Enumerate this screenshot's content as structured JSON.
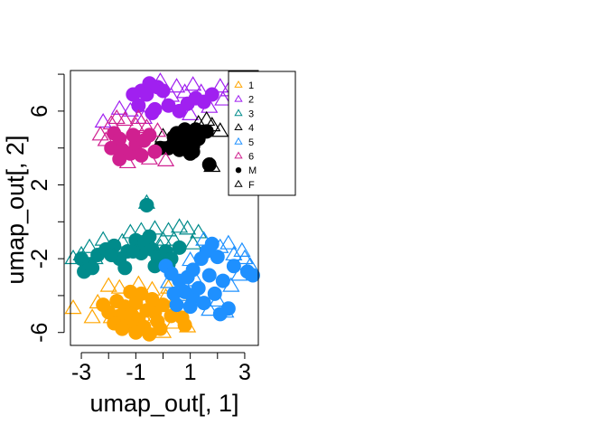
{
  "chart_data": {
    "type": "scatter",
    "title": "",
    "xlabel": "umap_out[, 1]",
    "ylabel": "umap_out[, 2]",
    "xlim": [
      -3.4,
      3.5
    ],
    "ylim": [
      -6.7,
      8.2
    ],
    "xticks": [
      -3,
      -1,
      1,
      3
    ],
    "xtick_labels": [
      "-3",
      "-1",
      "1",
      "3"
    ],
    "xminor": [
      -2,
      0,
      2
    ],
    "yticks": [
      -6,
      -2,
      2,
      6
    ],
    "ytick_labels": [
      "-6",
      "-2",
      "2",
      "6"
    ],
    "yminor": [
      -4,
      0,
      4,
      8
    ],
    "grid": false,
    "legend": {
      "placement": "top-right",
      "entries": [
        {
          "label": "1",
          "symbol": "triangle",
          "color": "#FFA500"
        },
        {
          "label": "2",
          "symbol": "triangle",
          "color": "#A020F0"
        },
        {
          "label": "3",
          "symbol": "triangle",
          "color": "#008B8B"
        },
        {
          "label": "4",
          "symbol": "triangle",
          "color": "#000000"
        },
        {
          "label": "5",
          "symbol": "triangle",
          "color": "#1E90FF"
        },
        {
          "label": "6",
          "symbol": "triangle",
          "color": "#D02090"
        },
        {
          "label": "M",
          "symbol": "circle",
          "color": "#000000"
        },
        {
          "label": "F",
          "symbol": "triangle",
          "color": "#000000"
        }
      ]
    },
    "series": [
      {
        "name": "1",
        "color": "#FFA500",
        "M": [
          [
            -1.7,
            -4.3
          ],
          [
            -1.4,
            -4.6
          ],
          [
            -1.0,
            -4.4
          ],
          [
            -0.6,
            -4.8
          ],
          [
            -1.2,
            -5.0
          ],
          [
            -1.6,
            -5.1
          ],
          [
            -0.9,
            -5.3
          ],
          [
            -0.3,
            -4.9
          ],
          [
            -1.8,
            -5.5
          ],
          [
            -1.3,
            -5.6
          ],
          [
            -0.7,
            -5.7
          ],
          [
            -0.2,
            -5.4
          ],
          [
            -1.0,
            -6.0
          ],
          [
            -0.5,
            -6.1
          ],
          [
            -1.5,
            -5.8
          ],
          [
            -0.8,
            -3.9
          ],
          [
            -1.2,
            -3.8
          ],
          [
            -0.4,
            -4.2
          ],
          [
            0.0,
            -4.5
          ],
          [
            0.3,
            -5.1
          ],
          [
            0.7,
            -5.2
          ],
          [
            0.8,
            -5.6
          ],
          [
            -2.0,
            -4.9
          ],
          [
            -2.2,
            -4.5
          ],
          [
            -0.1,
            -5.8
          ]
        ],
        "F": [
          [
            -3.3,
            -4.7
          ],
          [
            -2.4,
            -4.4
          ],
          [
            -2.0,
            -3.5
          ],
          [
            -1.6,
            -3.6
          ],
          [
            -0.9,
            -3.4
          ],
          [
            -0.4,
            -3.7
          ],
          [
            0.2,
            -3.6
          ],
          [
            0.1,
            -4.1
          ],
          [
            0.6,
            -4.0
          ],
          [
            -0.3,
            -5.2
          ],
          [
            0.4,
            -5.5
          ],
          [
            0.9,
            -5.7
          ],
          [
            -2.6,
            -5.2
          ],
          [
            -1.1,
            -4.9
          ],
          [
            0.0,
            -6.0
          ],
          [
            -1.9,
            -5.2
          ],
          [
            0.3,
            -4.6
          ],
          [
            -0.6,
            -5.5
          ]
        ]
      },
      {
        "name": "2",
        "color": "#A020F0",
        "M": [
          [
            -1.1,
            6.9
          ],
          [
            -0.8,
            7.1
          ],
          [
            -0.5,
            7.5
          ],
          [
            -0.2,
            7.3
          ],
          [
            0.0,
            7.1
          ],
          [
            -0.6,
            6.9
          ],
          [
            -0.9,
            6.3
          ],
          [
            -0.3,
            6.1
          ],
          [
            0.2,
            6.3
          ],
          [
            0.6,
            6.0
          ],
          [
            0.9,
            6.4
          ],
          [
            1.2,
            6.7
          ],
          [
            1.5,
            6.5
          ],
          [
            1.8,
            6.9
          ],
          [
            -0.4,
            5.9
          ]
        ],
        "F": [
          [
            -1.6,
            6.1
          ],
          [
            -1.2,
            6.0
          ],
          [
            -0.1,
            7.6
          ],
          [
            0.5,
            7.3
          ],
          [
            0.8,
            7.0
          ],
          [
            1.1,
            7.4
          ],
          [
            1.4,
            7.0
          ],
          [
            1.7,
            6.2
          ],
          [
            2.1,
            7.3
          ],
          [
            2.4,
            7.1
          ],
          [
            0.3,
            6.8
          ],
          [
            1.0,
            5.8
          ],
          [
            -2.2,
            5.4
          ],
          [
            -0.7,
            5.6
          ],
          [
            2.2,
            6.6
          ]
        ]
      },
      {
        "name": "3",
        "color": "#008B8B",
        "M": [
          [
            -3.0,
            -2.0
          ],
          [
            -2.9,
            -2.7
          ],
          [
            -2.7,
            -2.3
          ],
          [
            -2.4,
            -1.8
          ],
          [
            -2.1,
            -1.5
          ],
          [
            -1.8,
            -1.3
          ],
          [
            -1.6,
            -2.0
          ],
          [
            -1.3,
            -1.6
          ],
          [
            -1.0,
            -1.0
          ],
          [
            -0.7,
            -1.1
          ],
          [
            -0.5,
            -0.8
          ],
          [
            -0.4,
            -1.5
          ],
          [
            -0.2,
            -1.9
          ],
          [
            0.1,
            -1.6
          ],
          [
            0.3,
            -2.0
          ],
          [
            0.6,
            -1.4
          ],
          [
            -0.8,
            -1.7
          ],
          [
            -2.6,
            -2.5
          ],
          [
            0.2,
            -2.3
          ],
          [
            -0.6,
            0.9
          ],
          [
            -1.9,
            -1.8
          ],
          [
            -1.1,
            -1.6
          ],
          [
            -0.3,
            -2.4
          ],
          [
            -1.4,
            -2.5
          ]
        ],
        "F": [
          [
            -3.3,
            -2.0
          ],
          [
            -3.0,
            -1.8
          ],
          [
            -2.7,
            -1.4
          ],
          [
            -2.2,
            -1.0
          ],
          [
            -1.7,
            -1.5
          ],
          [
            -1.2,
            -0.6
          ],
          [
            -0.8,
            -0.5
          ],
          [
            -0.3,
            -0.4
          ],
          [
            0.2,
            -0.5
          ],
          [
            0.6,
            -0.3
          ],
          [
            0.9,
            -0.4
          ],
          [
            1.3,
            -0.6
          ],
          [
            0.0,
            -1.0
          ],
          [
            -0.6,
            -0.9
          ],
          [
            -1.5,
            -1.1
          ],
          [
            1.1,
            -1.2
          ],
          [
            -0.6,
            1.0
          ],
          [
            -2.5,
            -2.0
          ],
          [
            0.4,
            -1.0
          ],
          [
            -0.1,
            -1.4
          ]
        ]
      },
      {
        "name": "4",
        "color": "#000000",
        "M": [
          [
            -0.1,
            4.0
          ],
          [
            0.2,
            4.0
          ],
          [
            0.5,
            4.2
          ],
          [
            0.7,
            4.6
          ],
          [
            0.6,
            3.9
          ],
          [
            0.9,
            4.3
          ],
          [
            1.1,
            4.1
          ],
          [
            1.3,
            4.5
          ],
          [
            1.0,
            3.7
          ],
          [
            0.8,
            5.0
          ],
          [
            1.2,
            5.0
          ],
          [
            1.6,
            4.9
          ],
          [
            1.1,
            3.8
          ],
          [
            0.5,
            4.8
          ],
          [
            0.4,
            4.6
          ],
          [
            1.7,
            3.1
          ],
          [
            0.9,
            4.8
          ]
        ],
        "F": [
          [
            0.0,
            4.6
          ],
          [
            1.3,
            5.3
          ],
          [
            1.6,
            5.5
          ],
          [
            1.8,
            5.2
          ],
          [
            2.1,
            4.9
          ],
          [
            1.8,
            3.0
          ],
          [
            0.3,
            4.3
          ]
        ]
      },
      {
        "name": "5",
        "color": "#1E90FF",
        "M": [
          [
            0.1,
            -2.4
          ],
          [
            0.3,
            -2.8
          ],
          [
            0.6,
            -3.2
          ],
          [
            0.9,
            -3.0
          ],
          [
            1.1,
            -2.6
          ],
          [
            1.4,
            -2.0
          ],
          [
            1.6,
            -1.6
          ],
          [
            1.8,
            -1.2
          ],
          [
            2.0,
            -1.9
          ],
          [
            1.7,
            -2.9
          ],
          [
            0.8,
            -3.8
          ],
          [
            1.1,
            -4.1
          ],
          [
            1.5,
            -4.4
          ],
          [
            1.9,
            -3.9
          ],
          [
            2.2,
            -3.2
          ],
          [
            2.4,
            -4.7
          ],
          [
            2.1,
            -5.0
          ],
          [
            1.0,
            -4.6
          ],
          [
            0.4,
            -3.9
          ],
          [
            0.5,
            -4.5
          ],
          [
            2.6,
            -2.4
          ],
          [
            3.3,
            -2.9
          ],
          [
            3.1,
            -2.7
          ],
          [
            1.3,
            -3.6
          ]
        ],
        "F": [
          [
            1.0,
            -2.1
          ],
          [
            1.5,
            -1.0
          ],
          [
            2.1,
            -1.4
          ],
          [
            2.4,
            -1.2
          ],
          [
            2.6,
            -1.8
          ],
          [
            2.9,
            -1.6
          ],
          [
            3.0,
            -2.0
          ],
          [
            3.2,
            -2.4
          ],
          [
            2.8,
            -2.9
          ],
          [
            2.5,
            -3.5
          ],
          [
            2.0,
            -4.3
          ],
          [
            1.7,
            -4.8
          ],
          [
            2.3,
            -4.9
          ],
          [
            0.7,
            -4.0
          ],
          [
            1.2,
            -3.2
          ],
          [
            0.2,
            -3.3
          ]
        ]
      },
      {
        "name": "6",
        "color": "#D02090",
        "M": [
          [
            -1.8,
            4.8
          ],
          [
            -1.6,
            4.5
          ],
          [
            -1.5,
            3.9
          ],
          [
            -1.2,
            3.7
          ],
          [
            -1.0,
            4.2
          ],
          [
            -0.7,
            4.4
          ],
          [
            -0.5,
            4.7
          ],
          [
            -0.8,
            3.6
          ],
          [
            -1.6,
            3.4
          ],
          [
            -0.3,
            3.8
          ],
          [
            -1.1,
            4.7
          ],
          [
            -1.9,
            4.0
          ]
        ],
        "F": [
          [
            -2.1,
            4.4
          ],
          [
            -1.9,
            5.3
          ],
          [
            -1.4,
            5.5
          ],
          [
            -1.0,
            5.2
          ],
          [
            -0.6,
            5.1
          ],
          [
            -0.2,
            4.9
          ],
          [
            -1.3,
            3.2
          ],
          [
            -0.5,
            3.4
          ],
          [
            -2.3,
            4.7
          ],
          [
            0.1,
            3.3
          ],
          [
            -0.9,
            5.6
          ],
          [
            -1.7,
            5.6
          ]
        ]
      }
    ]
  }
}
